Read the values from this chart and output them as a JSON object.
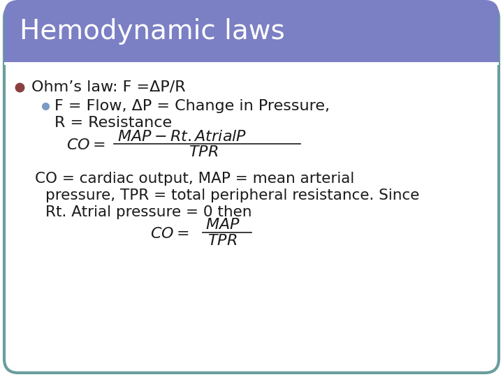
{
  "title": "Hemodynamic laws",
  "title_bg_color": "#7B7FC4",
  "title_text_color": "#FFFFFF",
  "slide_bg_color": "#FFFFFF",
  "border_color": "#6B9E9E",
  "bullet1_color": "#8B4040",
  "bullet2_color": "#7B9BC4",
  "body_text_color": "#1a1a1a",
  "line1": "Ohm’s law: F =ΔP/R",
  "line2": "F = Flow, ΔP = Change in Pressure,",
  "line3": "R = Resistance",
  "desc1": "CO = cardiac output, MAP = mean arterial",
  "desc2": "pressure, TPR = total peripheral resistance. Since",
  "desc3": "Rt. Atrial pressure = 0 then"
}
